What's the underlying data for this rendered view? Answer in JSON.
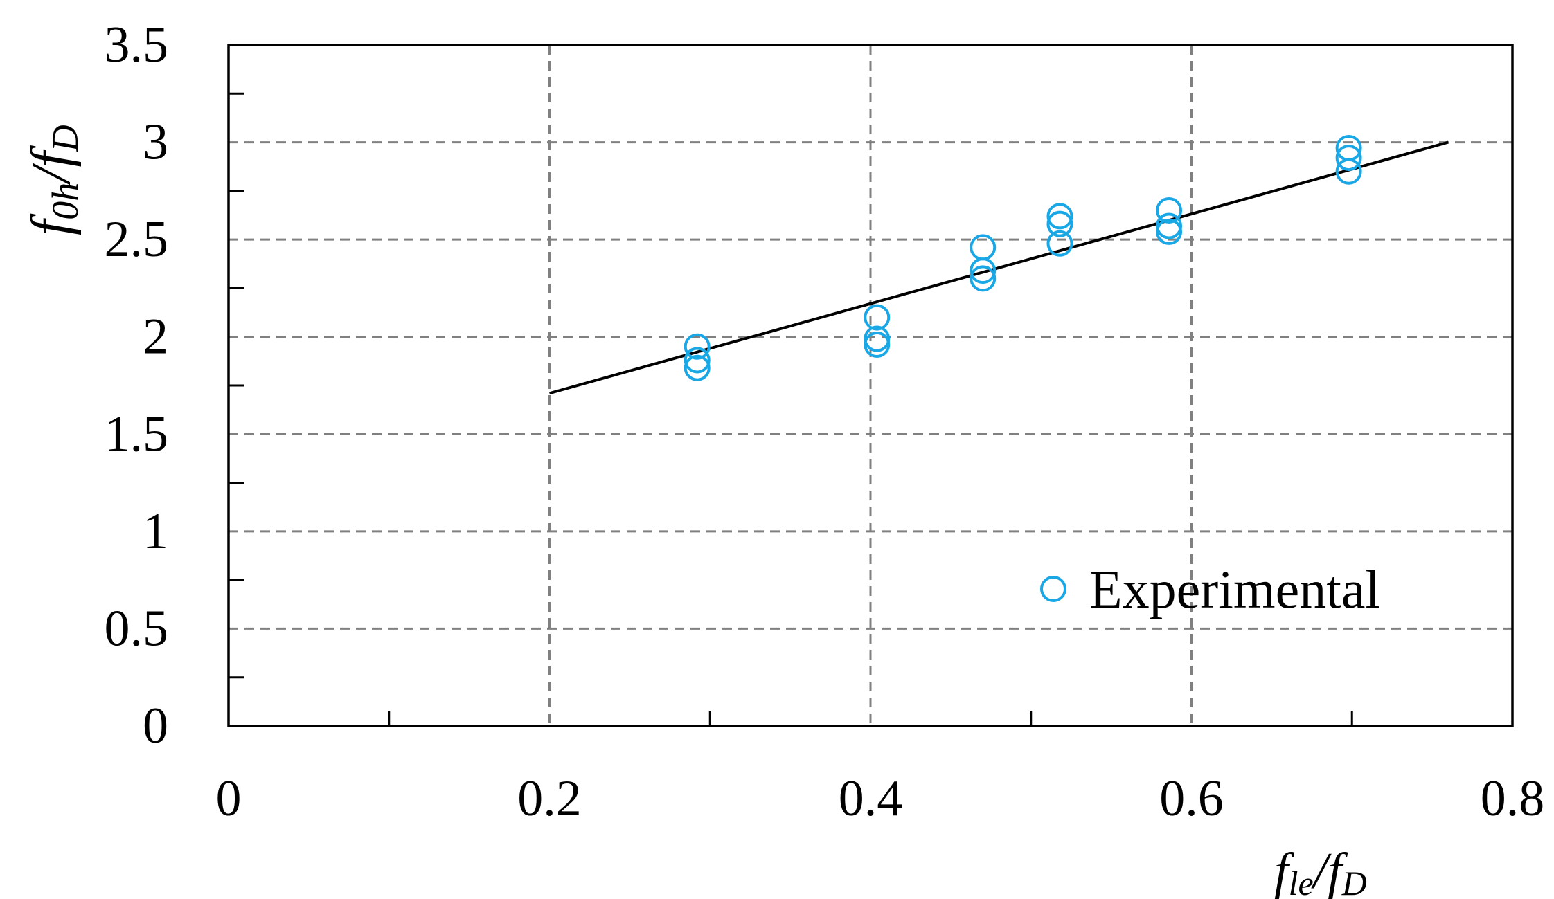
{
  "chart_data": {
    "type": "scatter",
    "xlim": [
      0,
      0.8
    ],
    "ylim": [
      0,
      3.5
    ],
    "x_ticks": [
      {
        "value": 0,
        "label": "0"
      },
      {
        "value": 0.2,
        "label": "0.2"
      },
      {
        "value": 0.4,
        "label": "0.4"
      },
      {
        "value": 0.6,
        "label": "0.6"
      },
      {
        "value": 0.8,
        "label": "0.8"
      }
    ],
    "y_ticks": [
      {
        "value": 0,
        "label": "0"
      },
      {
        "value": 0.5,
        "label": "0.5"
      },
      {
        "value": 1,
        "label": "1"
      },
      {
        "value": 1.5,
        "label": "1.5"
      },
      {
        "value": 2,
        "label": "2"
      },
      {
        "value": 2.5,
        "label": "2.5"
      },
      {
        "value": 3,
        "label": "3"
      },
      {
        "value": 3.5,
        "label": "3.5"
      }
    ],
    "x_minor_ticks": [
      0.1,
      0.3,
      0.5,
      0.7
    ],
    "y_minor_ticks": [
      0.25,
      0.75,
      1.25,
      1.75,
      2.25,
      2.75,
      3.25
    ],
    "grid": true,
    "grid_style": "dashed",
    "xlabel": {
      "main": "f",
      "sub": "le",
      "sep": "/",
      "main2": "f",
      "sub2": "D"
    },
    "ylabel": {
      "main": "f",
      "sub": "0h",
      "sep": "/",
      "main2": "f",
      "sub2": "D"
    },
    "legend_position": "bottom-right",
    "series": [
      {
        "name": "Experimental",
        "kind": "scatter",
        "marker": "hollow-circle",
        "color": "#1aa7e6",
        "points": [
          {
            "x": 0.292,
            "y": 1.95
          },
          {
            "x": 0.292,
            "y": 1.88
          },
          {
            "x": 0.292,
            "y": 1.84
          },
          {
            "x": 0.404,
            "y": 2.1
          },
          {
            "x": 0.404,
            "y": 1.99
          },
          {
            "x": 0.404,
            "y": 1.96
          },
          {
            "x": 0.47,
            "y": 2.46
          },
          {
            "x": 0.47,
            "y": 2.34
          },
          {
            "x": 0.47,
            "y": 2.3
          },
          {
            "x": 0.518,
            "y": 2.62
          },
          {
            "x": 0.518,
            "y": 2.58
          },
          {
            "x": 0.518,
            "y": 2.48
          },
          {
            "x": 0.586,
            "y": 2.65
          },
          {
            "x": 0.586,
            "y": 2.57
          },
          {
            "x": 0.586,
            "y": 2.54
          },
          {
            "x": 0.698,
            "y": 2.97
          },
          {
            "x": 0.698,
            "y": 2.92
          },
          {
            "x": 0.698,
            "y": 2.85
          }
        ]
      },
      {
        "kind": "line",
        "color": "#000000",
        "points": [
          {
            "x": 0.2,
            "y": 1.71
          },
          {
            "x": 0.76,
            "y": 3.0
          }
        ]
      }
    ]
  }
}
